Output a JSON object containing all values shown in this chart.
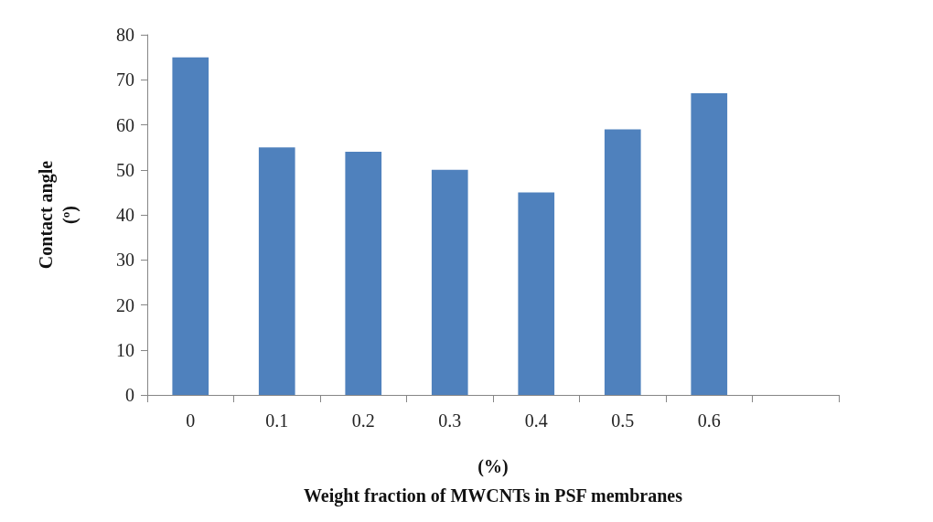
{
  "chart_data": {
    "type": "bar",
    "xlabel": "(%)\nWeight fraction of MWCNTs in PSF membranes",
    "ylabel": "Contact angle\n(º)",
    "categories": [
      "0",
      "0.1",
      "0.2",
      "0.3",
      "0.4",
      "0.5",
      "0.6",
      null
    ],
    "values": [
      75,
      55,
      54,
      50,
      45,
      59,
      67,
      null
    ],
    "color": "#4f81bd",
    "ylim": [
      0,
      80
    ],
    "yticks": [
      0,
      10,
      20,
      30,
      40,
      50,
      60,
      70,
      80
    ]
  }
}
